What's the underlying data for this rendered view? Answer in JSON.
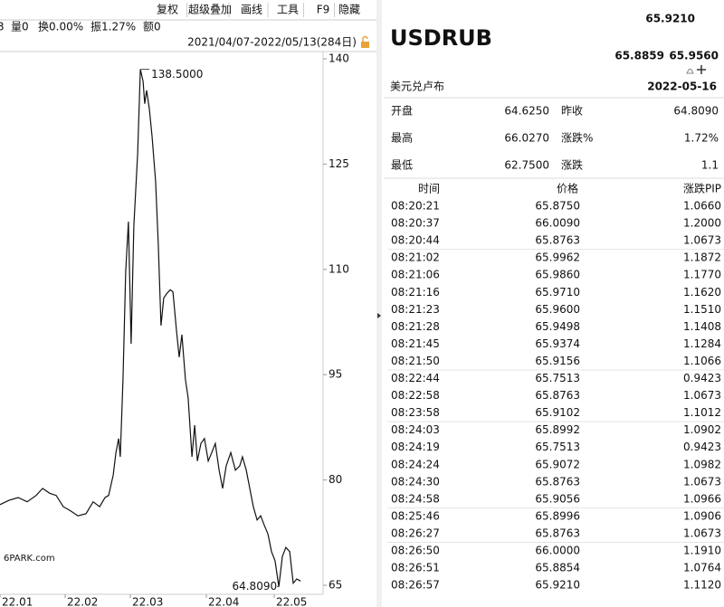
{
  "toolbar": [
    "复权",
    "超级叠加",
    "画线",
    "工具",
    "F9",
    "隐藏"
  ],
  "info": [
    "3",
    "量0",
    "换0.00%",
    "振1.27%",
    "额0"
  ],
  "date_range": "2021/04/07-2022/05/13(284日)",
  "watermark": "6PARK.com",
  "chart_data": {
    "type": "line",
    "x": [
      0,
      3.3,
      6.7,
      10,
      13.3,
      15.7,
      18.3,
      20.7,
      23.3,
      26,
      28.7,
      31.7,
      34.3,
      36.7,
      38.7,
      40,
      41.7,
      42.7,
      43.7,
      44.3,
      45.3,
      46.3,
      47.3,
      48.3,
      49.3,
      50.7,
      51.7,
      52.7,
      53.3,
      54,
      55,
      56,
      57.3,
      58.3,
      59.3,
      60.3,
      61.3,
      62.7,
      63.7,
      65,
      66,
      67,
      68.3,
      69.3,
      70.7,
      71.7,
      72.7,
      74,
      75.3,
      76.7,
      78,
      79.3,
      80.7,
      82,
      83.3,
      85,
      86.7,
      88.3,
      89.3,
      90.7,
      92,
      93.3,
      94.7,
      96,
      97.3,
      98.7,
      100,
      101.3,
      102.7,
      104,
      105.3,
      106.7,
      108,
      109.3,
      110.7
    ],
    "series": [
      {
        "color": "#111111",
        "values": [
          76.5,
          77.1,
          77.5,
          76.9,
          77.8,
          78.8,
          78.1,
          77.8,
          76.2,
          75.6,
          74.9,
          75.2,
          76.9,
          76.2,
          77.5,
          77.8,
          80.7,
          83.9,
          85.9,
          83.3,
          94.3,
          109.7,
          116.8,
          99.4,
          116.2,
          126.5,
          138.5,
          136.8,
          133.6,
          135.5,
          132.9,
          129,
          122.6,
          113.6,
          102,
          105.9,
          106.5,
          107.1,
          106.8,
          101.3,
          97.5,
          100.7,
          94.3,
          91.7,
          83.3,
          87.8,
          82.7,
          85.2,
          85.9,
          82.7,
          83.9,
          85.2,
          81.4,
          78.8,
          82,
          83.9,
          81.4,
          82,
          83.3,
          81.4,
          78.8,
          76.2,
          74.3,
          74.9,
          73.6,
          72.3,
          69.8,
          68.5,
          64.809,
          69.1,
          70.4,
          69.8,
          65.3,
          65.9,
          65.6
        ]
      }
    ],
    "xlim": [
      0,
      119
    ],
    "xticks": [
      {
        "value": 0,
        "label": "22.01"
      },
      {
        "value": 24,
        "label": "22.02"
      },
      {
        "value": 48,
        "label": "22.03"
      },
      {
        "value": 76,
        "label": "22.04"
      },
      {
        "value": 101,
        "label": "22.05"
      }
    ],
    "ylim": [
      65,
      140
    ],
    "yticks": [
      140,
      125,
      110,
      95,
      80,
      65
    ],
    "grid": false,
    "annotations": [
      {
        "label": "138.5000",
        "value": 138.5,
        "color": "#b22222"
      },
      {
        "label": "64.8090",
        "value": 64.809,
        "color": "#1a8a1a"
      }
    ]
  },
  "quote": {
    "last": "65.9210",
    "bid_ask": [
      "65.8859",
      "65.9560"
    ],
    "symbol": "USDRUB",
    "name": "美元兑卢布",
    "date": "2022-05-16",
    "stats": [
      [
        {
          "text": "开盘"
        },
        {
          "text": "64.6250",
          "color": "#1a8a1a"
        },
        {
          "text": "昨收"
        },
        {
          "text": "64.8090",
          "color": "#111111"
        }
      ],
      [
        {
          "text": "最高"
        },
        {
          "text": "66.0270",
          "color": "#b22222"
        },
        {
          "text": "涨跌%"
        },
        {
          "text": "1.72%",
          "color": "#b22222"
        }
      ],
      [
        {
          "text": "最低"
        },
        {
          "text": "62.7500",
          "color": "#1a8a1a"
        },
        {
          "text": "涨跌"
        },
        {
          "text": "1.1",
          "color": "#b22222"
        }
      ]
    ],
    "headers": [
      "时间",
      "价格",
      "涨跌PIP"
    ],
    "ticks": [
      [
        "08:20:21",
        "65.8750",
        "1.0660"
      ],
      [
        "08:20:37",
        "66.0090",
        "1.2000"
      ],
      [
        "08:20:44",
        "65.8763",
        "1.0673"
      ],
      [
        "08:21:02",
        "65.9962",
        "1.1872"
      ],
      [
        "08:21:06",
        "65.9860",
        "1.1770"
      ],
      [
        "08:21:16",
        "65.9710",
        "1.1620"
      ],
      [
        "08:21:23",
        "65.9600",
        "1.1510"
      ],
      [
        "08:21:28",
        "65.9498",
        "1.1408"
      ],
      [
        "08:21:45",
        "65.9374",
        "1.1284"
      ],
      [
        "08:21:50",
        "65.9156",
        "1.1066"
      ],
      [
        "08:22:44",
        "65.7513",
        "0.9423"
      ],
      [
        "08:22:58",
        "65.8763",
        "1.0673"
      ],
      [
        "08:23:58",
        "65.9102",
        "1.1012"
      ],
      [
        "08:24:03",
        "65.8992",
        "1.0902"
      ],
      [
        "08:24:19",
        "65.7513",
        "0.9423"
      ],
      [
        "08:24:24",
        "65.9072",
        "1.0982"
      ],
      [
        "08:24:30",
        "65.8763",
        "1.0673"
      ],
      [
        "08:24:58",
        "65.9056",
        "1.0966"
      ],
      [
        "08:25:46",
        "65.8996",
        "1.0906"
      ],
      [
        "08:26:27",
        "65.8763",
        "1.0673"
      ],
      [
        "08:26:50",
        "66.0000",
        "1.1910"
      ],
      [
        "08:26:51",
        "65.8854",
        "1.0764"
      ],
      [
        "08:26:57",
        "65.9210",
        "1.1120"
      ]
    ]
  }
}
